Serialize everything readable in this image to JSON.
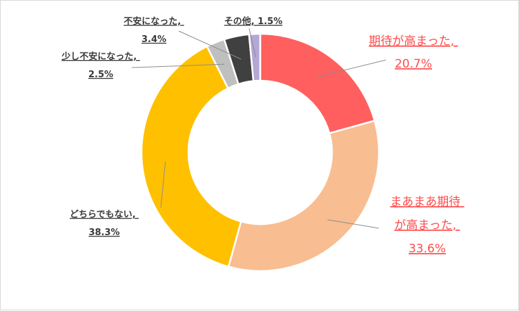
{
  "chart_data": {
    "type": "pie",
    "style": "donut",
    "title": "",
    "legend": "none",
    "slices": [
      {
        "label_lines": [
          "期待が高まった,",
          "20.7%"
        ],
        "value": 20.7,
        "color": "#ff5f5f",
        "label_color": "#ff4b4b"
      },
      {
        "label_lines": [
          "まあまあ期待",
          "が高まった,",
          "33.6%"
        ],
        "value": 33.6,
        "color": "#f8bd91",
        "label_color": "#ff4b4b"
      },
      {
        "label_lines": [
          "どちらでもない,",
          "38.3%"
        ],
        "value": 38.3,
        "color": "#ffc000",
        "label_color": "#3a3a3a"
      },
      {
        "label_lines": [
          "少し不安になった,",
          "2.5%"
        ],
        "value": 2.5,
        "color": "#bfbfbf",
        "label_color": "#3a3a3a"
      },
      {
        "label_lines": [
          "不安になった,",
          "3.4%"
        ],
        "value": 3.4,
        "color": "#404040",
        "label_color": "#3a3a3a"
      },
      {
        "label_lines": [
          "その他, 1.5%"
        ],
        "value": 1.5,
        "color": "#b4a7d6",
        "label_color": "#3a3a3a"
      }
    ]
  }
}
